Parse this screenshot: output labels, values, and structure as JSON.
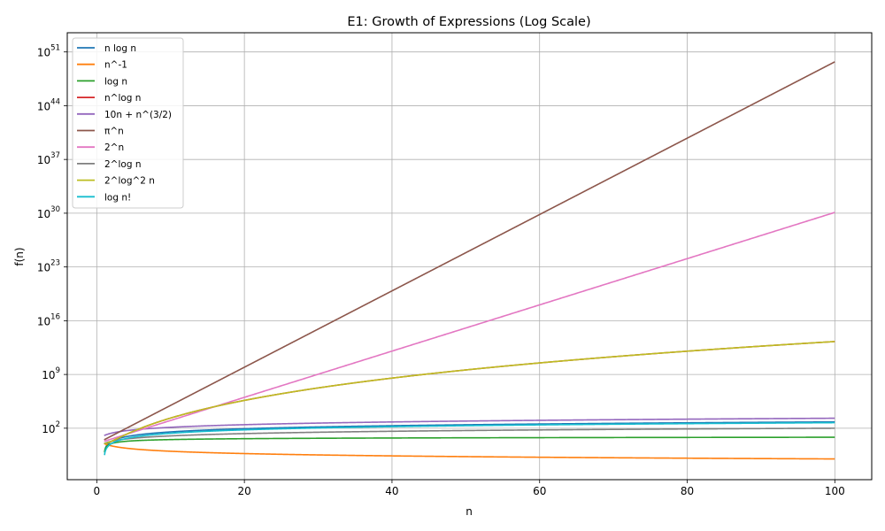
{
  "chart_data": {
    "type": "line",
    "title": "E1: Growth of Expressions (Log Scale)",
    "xlabel": "n",
    "ylabel": "f(n)",
    "xlim": [
      -4,
      105
    ],
    "ylim_log10": [
      -4.7,
      53.5
    ],
    "y_scale": "log",
    "grid": true,
    "legend_position": "top-left",
    "x_ticks": [
      0,
      20,
      40,
      60,
      80,
      100
    ],
    "y_ticks_exponents": [
      2,
      9,
      16,
      23,
      30,
      37,
      44,
      51
    ],
    "y_tick_base": "10",
    "x_domain": [
      1,
      100
    ],
    "series": [
      {
        "name": "n log n",
        "color": "#1f77b4",
        "expr": "n log n"
      },
      {
        "name": "n^-1",
        "color": "#ff7f0e",
        "expr": "n^-1"
      },
      {
        "name": "log n",
        "color": "#2ca02c",
        "expr": "log n"
      },
      {
        "name": "n^log n",
        "color": "#d62728",
        "expr": "n^log n"
      },
      {
        "name": "10n + n^(3/2)",
        "color": "#9467bd",
        "expr": "10n + n^(3/2)"
      },
      {
        "name": "π^n",
        "color": "#8c564b",
        "expr": "pi^n"
      },
      {
        "name": "2^n",
        "color": "#e377c2",
        "expr": "2^n"
      },
      {
        "name": "2^log n",
        "color": "#7f7f7f",
        "expr": "2^log n"
      },
      {
        "name": "2^log^2 n",
        "color": "#bcbd22",
        "expr": "2^log^2 n"
      },
      {
        "name": "log n!",
        "color": "#17becf",
        "expr": "log n!"
      }
    ]
  }
}
